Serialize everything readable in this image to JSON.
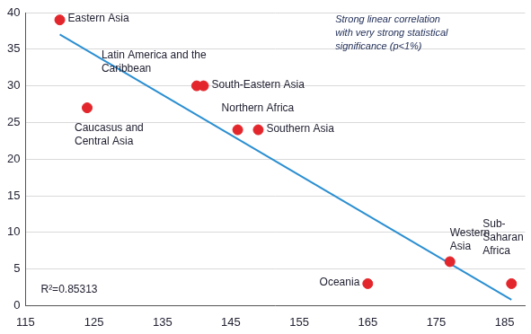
{
  "chart_data": {
    "type": "scatter",
    "x": [
      120,
      124,
      140,
      141,
      146,
      149,
      165,
      177,
      186
    ],
    "values": [
      39,
      27,
      30,
      30,
      24,
      24,
      3,
      6,
      3
    ],
    "labels": [
      "Eastern Asia",
      [
        "Caucasus and",
        "Central Asia"
      ],
      [
        "Latin America and the",
        "Caribbean"
      ],
      "South-Eastern Asia",
      "Northern Africa",
      "Southern Asia",
      "Oceania",
      [
        "Western",
        "Asia"
      ],
      [
        "Sub-",
        "Saharan",
        "Africa"
      ]
    ],
    "color": "#e3262b",
    "marker": "circle",
    "trend_line": {
      "x": [
        120,
        186
      ],
      "values": [
        37,
        0.8
      ],
      "color": "#2b8fd1"
    },
    "annotations": [
      [
        "Strong linear correlation",
        "with very strong statistical",
        "significance (p<1%)"
      ],
      [
        "R²=0.85313"
      ]
    ],
    "xlim": [
      115,
      188
    ],
    "ylim": [
      0,
      40
    ],
    "xticks": [
      115,
      125,
      135,
      145,
      155,
      165,
      175,
      185
    ],
    "yticks": [
      0,
      5,
      10,
      15,
      20,
      25,
      30,
      35,
      40
    ],
    "grid": "y"
  }
}
